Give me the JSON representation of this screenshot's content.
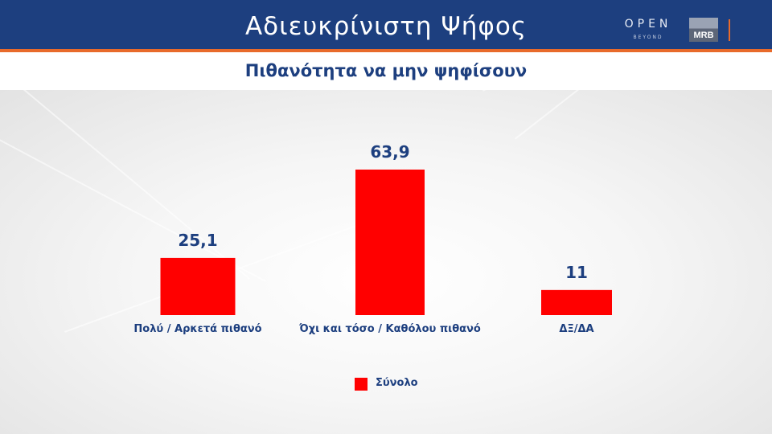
{
  "header": {
    "title": "Αδιευκρίνιστη  Ψήφος",
    "brand_open": "OPEN",
    "brand_beyond": "BEYOND",
    "brand_mrb": "MRB"
  },
  "colors": {
    "header_bg": "#1d3f7f",
    "accent": "#e86a2b",
    "bar": "#ff0000",
    "text": "#1d3f7f"
  },
  "chart_data": {
    "type": "bar",
    "title": "Πιθανότητα να μην ψηφίσουν",
    "categories": [
      "Πολύ / Αρκετά πιθανό",
      "Όχι και τόσο / Καθόλου πιθανό",
      "ΔΞ/ΔΑ"
    ],
    "series": [
      {
        "name": "Σύνολο",
        "values": [
          25.1,
          63.9,
          11
        ],
        "labels": [
          "25,1",
          "63,9",
          "11"
        ]
      }
    ],
    "xlabel": "",
    "ylabel": "",
    "ylim": [
      0,
      63.9
    ],
    "grid": false,
    "legend": "bottom-center"
  }
}
